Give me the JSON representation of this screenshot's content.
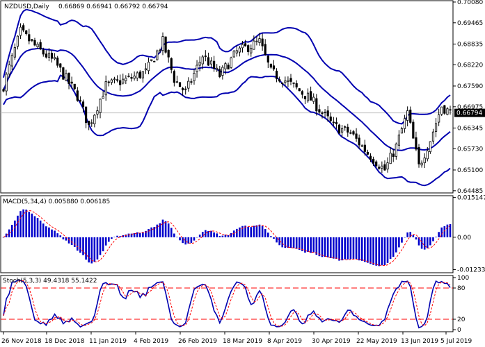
{
  "header": {
    "symbol": "NZDUSD,Daily",
    "ohlc": "0.66869 0.66941 0.66792 0.66794"
  },
  "price_axis": {
    "labels": [
      "0.70080",
      "0.69465",
      "0.68835",
      "0.68220",
      "0.67590",
      "0.66975",
      "0.66345",
      "0.65730",
      "0.65100",
      "0.64485"
    ],
    "current_price": "0.66794",
    "current_price_value": 0.66794,
    "range": [
      0.6442,
      0.7012
    ]
  },
  "macd": {
    "label": "MACD(5,34,4) 0.005880 0.006185",
    "axis_labels": [
      "0.015147",
      "0.00",
      "-0.01233"
    ],
    "range": [
      -0.0135,
      0.0158
    ]
  },
  "stoch": {
    "label": "Stoch(5,3,3) 49.4318 55.1422",
    "axis_labels": [
      "100",
      "80",
      "20",
      "0"
    ],
    "levels": [
      80,
      20
    ]
  },
  "time_axis": {
    "labels": [
      "26 Nov 2018",
      "18 Dec 2018",
      "11 Jan 2019",
      "4 Feb 2019",
      "26 Feb 2019",
      "18 Mar 2019",
      "8 Apr 2019",
      "30 Apr 2019",
      "22 May 2019",
      "13 Jun 2019",
      "5 Jul 2019"
    ]
  },
  "colors": {
    "bollinger": "#0000b0",
    "candles": "#000000",
    "macd_hist": "#0000cc",
    "signal": "#ff0000",
    "stoch_main": "#0000b0",
    "stoch_signal": "#ff0000",
    "level": "#ff0000",
    "grid": "#c0c0c0",
    "price_tag": "#000000"
  },
  "chart_data": {
    "type": "line",
    "title": "NZDUSD,Daily",
    "x": [
      "26 Nov 2018",
      "18 Dec 2018",
      "11 Jan 2019",
      "4 Feb 2019",
      "26 Feb 2019",
      "18 Mar 2019",
      "8 Apr 2019",
      "30 Apr 2019",
      "22 May 2019",
      "13 Jun 2019",
      "5 Jul 2019"
    ],
    "series": [
      {
        "name": "",
        "values": [
          0.688,
          0.676,
          0.674,
          0.682,
          0.684,
          0.686,
          0.676,
          0.66,
          0.652,
          0.66,
          0.668
        ]
      }
    ],
    "ylim": [
      0.64485,
      0.7008
    ]
  }
}
